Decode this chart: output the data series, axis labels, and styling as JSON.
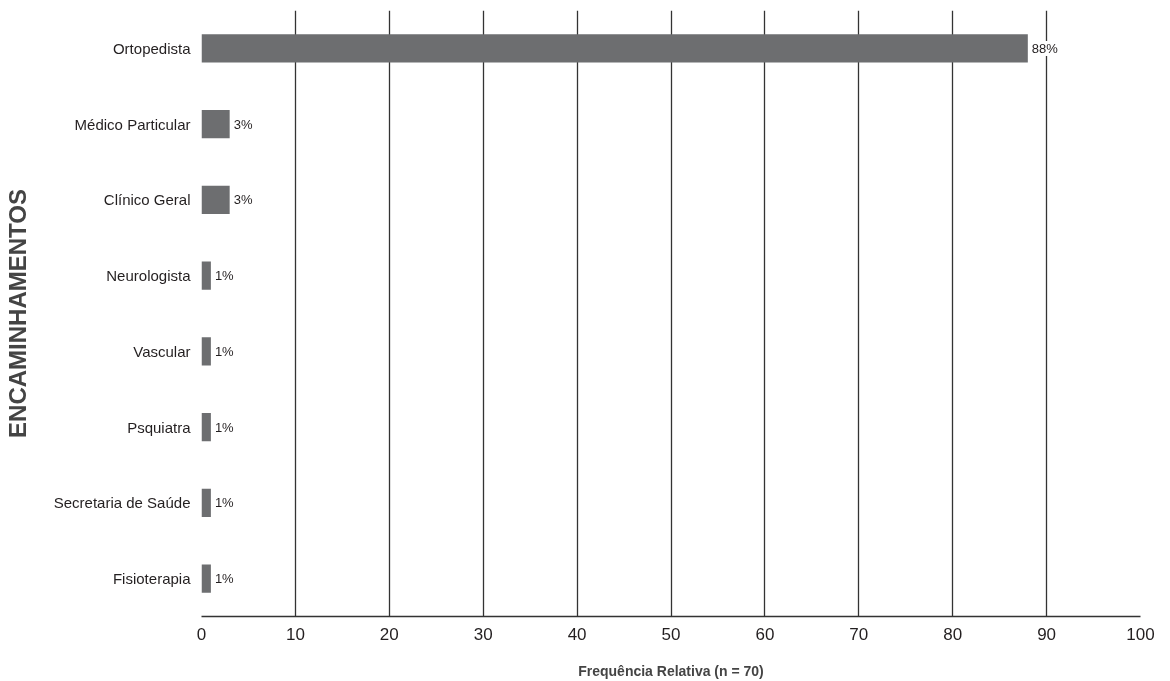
{
  "chart_data": {
    "type": "bar",
    "orientation": "horizontal",
    "xlabel": "Frequência Relativa (n = 70)",
    "ylabel": "ENCAMINHAMENTOS",
    "categories": [
      "Ortopedista",
      "Médico Particular",
      "Clínico Geral",
      "Neurologista",
      "Vascular",
      "Psquiatra",
      "Secretaria de Saúde",
      "Fisioterapia"
    ],
    "values": [
      88,
      3,
      3,
      1,
      1,
      1,
      1,
      1
    ],
    "value_labels": [
      "88%",
      "3%",
      "3%",
      "1%",
      "1%",
      "1%",
      "1%",
      "1%"
    ],
    "color": "#6d6e70",
    "xlim": [
      0,
      100
    ],
    "xticks": [
      0,
      10,
      20,
      30,
      40,
      50,
      60,
      70,
      80,
      90,
      100
    ],
    "grid": "x"
  }
}
